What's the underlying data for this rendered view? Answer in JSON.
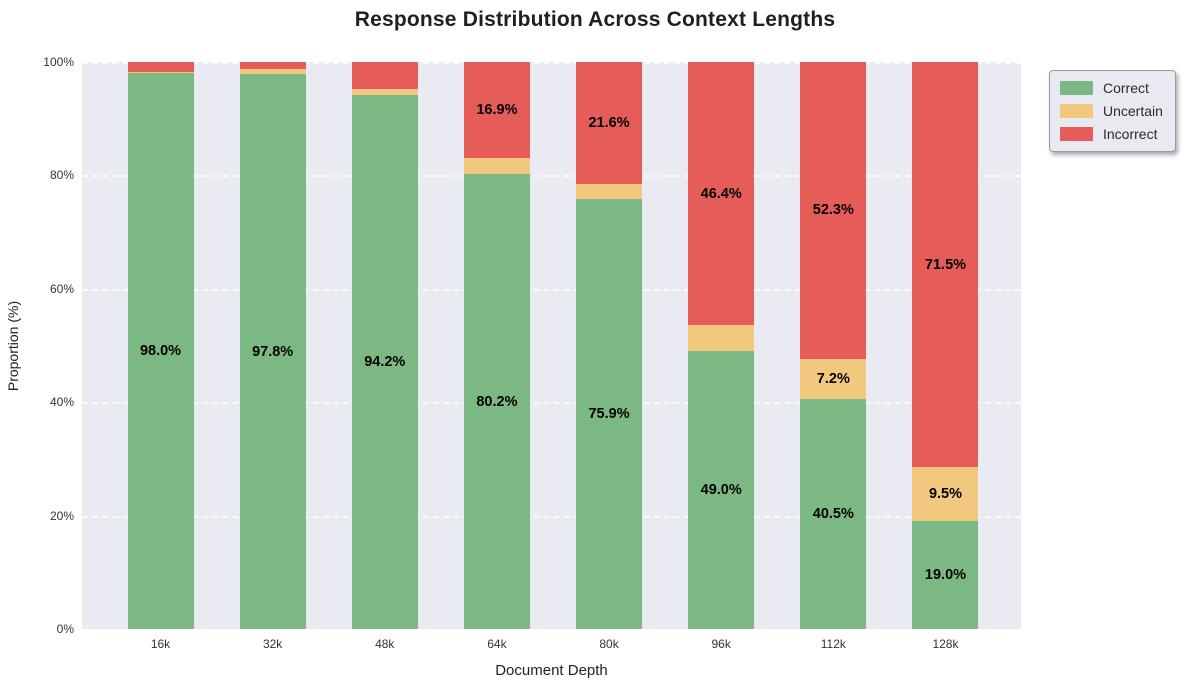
{
  "chart": {
    "title": "Response Distribution Across Context Lengths",
    "xlabel": "Document Depth",
    "ylabel": "Proportion (%)"
  },
  "chart_data": {
    "type": "bar",
    "stacked": true,
    "title": "Response Distribution Across Context Lengths",
    "xlabel": "Document Depth",
    "ylabel": "Proportion (%)",
    "categories": [
      "16k",
      "32k",
      "48k",
      "64k",
      "80k",
      "96k",
      "112k",
      "128k"
    ],
    "series": [
      {
        "name": "Correct",
        "color": "#7CB884",
        "values": [
          98.0,
          97.8,
          94.2,
          80.2,
          75.9,
          49.0,
          40.5,
          19.0
        ]
      },
      {
        "name": "Uncertain",
        "color": "#F2C87E",
        "values": [
          0.2,
          1.0,
          1.0,
          2.9,
          2.5,
          4.6,
          7.2,
          9.5
        ]
      },
      {
        "name": "Incorrect",
        "color": "#E65C58",
        "values": [
          1.8,
          1.2,
          4.8,
          16.9,
          21.6,
          46.4,
          52.3,
          71.5
        ]
      }
    ],
    "visible_segment_labels": [
      "98.0%",
      "97.8%",
      "94.2%",
      "80.2%",
      "16.9%",
      "75.9%",
      "21.6%",
      "49.0%",
      "46.4%",
      "40.5%",
      "7.2%",
      "52.3%",
      "19.0%",
      "9.5%",
      "71.5%"
    ],
    "label_min_value": 5,
    "ylim": [
      0,
      100
    ],
    "yticks": [
      {
        "value": 0,
        "label": "0%"
      },
      {
        "value": 20,
        "label": "20%"
      },
      {
        "value": 40,
        "label": "40%"
      },
      {
        "value": 60,
        "label": "60%"
      },
      {
        "value": 80,
        "label": "80%"
      },
      {
        "value": 100,
        "label": "100%"
      }
    ],
    "grid": true,
    "grid_style": "white dashed horizontal",
    "plot_background": "#EAEAF2",
    "legend_position": "upper right, outside plot",
    "legend_entries": [
      "Correct",
      "Uncertain",
      "Incorrect"
    ]
  }
}
